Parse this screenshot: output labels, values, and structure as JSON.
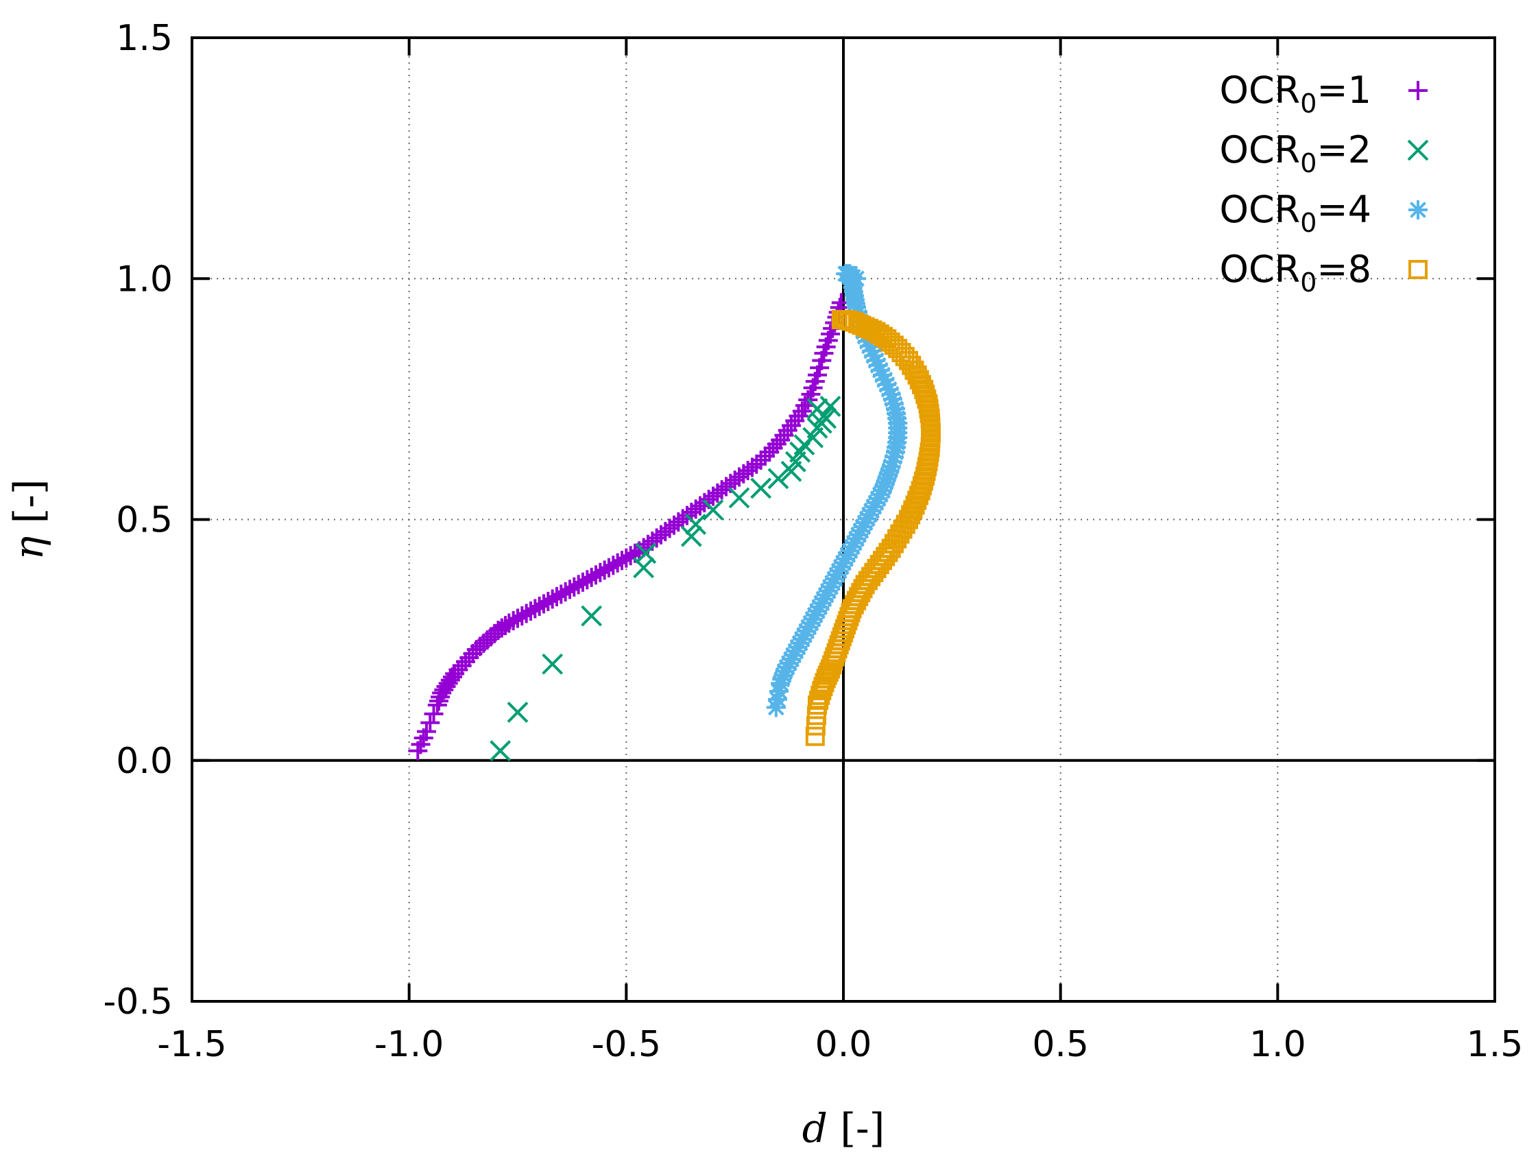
{
  "chart_data": {
    "type": "scatter",
    "xlabel_symbol": "d",
    "xlabel_unit": " [-]",
    "ylabel_symbol": "η",
    "ylabel_unit": " [-]",
    "xlim": [
      -1.5,
      1.5
    ],
    "ylim": [
      -0.5,
      1.5
    ],
    "x_ticks": [
      -1.5,
      -1.0,
      -0.5,
      0.0,
      0.5,
      1.0,
      1.5
    ],
    "y_ticks": [
      -0.5,
      0.0,
      0.5,
      1.0,
      1.5
    ],
    "x_tick_labels": [
      "-1.5",
      "-1.0",
      "-0.5",
      "0.0",
      "0.5",
      "1.0",
      "1.5"
    ],
    "y_tick_labels": [
      "-0.5",
      "0.0",
      "0.5",
      "1.0",
      "1.5"
    ],
    "grid": true,
    "legend_position": "top-right",
    "series": [
      {
        "name": "OCR0=1",
        "label_main": "OCR",
        "label_sub": "0",
        "label_tail": "=1",
        "color": "#9400d3",
        "marker": "plus",
        "points": [
          [
            -0.98,
            0.02
          ],
          [
            -0.96,
            0.06
          ],
          [
            -0.935,
            0.115
          ],
          [
            -0.925,
            0.14
          ],
          [
            -0.91,
            0.16
          ],
          [
            -0.895,
            0.18
          ],
          [
            -0.87,
            0.205
          ],
          [
            -0.845,
            0.23
          ],
          [
            -0.82,
            0.25
          ],
          [
            -0.795,
            0.27
          ],
          [
            -0.77,
            0.285
          ],
          [
            -0.74,
            0.3
          ],
          [
            -0.71,
            0.315
          ],
          [
            -0.68,
            0.33
          ],
          [
            -0.65,
            0.345
          ],
          [
            -0.62,
            0.36
          ],
          [
            -0.59,
            0.375
          ],
          [
            -0.56,
            0.39
          ],
          [
            -0.53,
            0.405
          ],
          [
            -0.5,
            0.42
          ],
          [
            -0.47,
            0.435
          ],
          [
            -0.44,
            0.455
          ],
          [
            -0.41,
            0.475
          ],
          [
            -0.38,
            0.495
          ],
          [
            -0.35,
            0.515
          ],
          [
            -0.32,
            0.535
          ],
          [
            -0.29,
            0.555
          ],
          [
            -0.26,
            0.575
          ],
          [
            -0.23,
            0.595
          ],
          [
            -0.2,
            0.615
          ],
          [
            -0.17,
            0.64
          ],
          [
            -0.145,
            0.665
          ],
          [
            -0.12,
            0.695
          ],
          [
            -0.095,
            0.725
          ],
          [
            -0.075,
            0.76
          ],
          [
            -0.06,
            0.8
          ],
          [
            -0.045,
            0.845
          ],
          [
            -0.03,
            0.885
          ],
          [
            -0.015,
            0.92
          ],
          [
            -0.005,
            0.95
          ]
        ]
      },
      {
        "name": "OCR0=2",
        "label_main": "OCR",
        "label_sub": "0",
        "label_tail": "=2",
        "color": "#009e73",
        "marker": "cross",
        "points": [
          [
            -0.79,
            0.02
          ],
          [
            -0.75,
            0.1
          ],
          [
            -0.67,
            0.2
          ],
          [
            -0.58,
            0.3
          ],
          [
            -0.46,
            0.4
          ],
          [
            -0.455,
            0.43
          ],
          [
            -0.35,
            0.465
          ],
          [
            -0.34,
            0.49
          ],
          [
            -0.3,
            0.52
          ],
          [
            -0.24,
            0.545
          ],
          [
            -0.19,
            0.565
          ],
          [
            -0.15,
            0.585
          ],
          [
            -0.12,
            0.6
          ],
          [
            -0.11,
            0.62
          ],
          [
            -0.1,
            0.64
          ],
          [
            -0.09,
            0.655
          ],
          [
            -0.07,
            0.67
          ],
          [
            -0.06,
            0.69
          ],
          [
            -0.05,
            0.7
          ],
          [
            -0.04,
            0.71
          ],
          [
            -0.06,
            0.73
          ],
          [
            -0.03,
            0.735
          ],
          [
            -0.045,
            0.715
          ]
        ]
      },
      {
        "name": "OCR0=4",
        "label_main": "OCR",
        "label_sub": "0",
        "label_tail": "=4",
        "color": "#56b4e9",
        "marker": "star",
        "points": [
          [
            -0.155,
            0.11
          ],
          [
            -0.145,
            0.16
          ],
          [
            -0.135,
            0.185
          ],
          [
            -0.12,
            0.21
          ],
          [
            -0.105,
            0.235
          ],
          [
            -0.09,
            0.26
          ],
          [
            -0.075,
            0.285
          ],
          [
            -0.06,
            0.31
          ],
          [
            -0.045,
            0.335
          ],
          [
            -0.03,
            0.36
          ],
          [
            -0.015,
            0.385
          ],
          [
            0.0,
            0.41
          ],
          [
            0.015,
            0.435
          ],
          [
            0.03,
            0.46
          ],
          [
            0.045,
            0.485
          ],
          [
            0.06,
            0.51
          ],
          [
            0.075,
            0.535
          ],
          [
            0.09,
            0.56
          ],
          [
            0.1,
            0.585
          ],
          [
            0.11,
            0.61
          ],
          [
            0.12,
            0.64
          ],
          [
            0.125,
            0.67
          ],
          [
            0.125,
            0.7
          ],
          [
            0.12,
            0.73
          ],
          [
            0.11,
            0.76
          ],
          [
            0.095,
            0.79
          ],
          [
            0.08,
            0.82
          ],
          [
            0.065,
            0.85
          ],
          [
            0.05,
            0.88
          ],
          [
            0.04,
            0.91
          ],
          [
            0.03,
            0.94
          ],
          [
            0.025,
            0.965
          ],
          [
            0.02,
            0.99
          ],
          [
            0.015,
            1.01
          ],
          [
            0.005,
            1.01
          ],
          [
            0.03,
            1.0
          ]
        ]
      },
      {
        "name": "OCR0=8",
        "label_main": "OCR",
        "label_sub": "0",
        "label_tail": "=8",
        "color": "#e69f00",
        "marker": "square",
        "points": [
          [
            -0.065,
            0.05
          ],
          [
            -0.06,
            0.115
          ],
          [
            -0.05,
            0.145
          ],
          [
            -0.04,
            0.17
          ],
          [
            -0.03,
            0.19
          ],
          [
            -0.02,
            0.215
          ],
          [
            -0.01,
            0.24
          ],
          [
            0.0,
            0.265
          ],
          [
            0.01,
            0.29
          ],
          [
            0.02,
            0.315
          ],
          [
            0.035,
            0.34
          ],
          [
            0.05,
            0.365
          ],
          [
            0.07,
            0.39
          ],
          [
            0.09,
            0.415
          ],
          [
            0.11,
            0.44
          ],
          [
            0.13,
            0.47
          ],
          [
            0.15,
            0.5
          ],
          [
            0.165,
            0.53
          ],
          [
            0.178,
            0.56
          ],
          [
            0.188,
            0.59
          ],
          [
            0.195,
            0.62
          ],
          [
            0.2,
            0.65
          ],
          [
            0.202,
            0.68
          ],
          [
            0.2,
            0.71
          ],
          [
            0.195,
            0.74
          ],
          [
            0.185,
            0.77
          ],
          [
            0.17,
            0.8
          ],
          [
            0.15,
            0.83
          ],
          [
            0.125,
            0.855
          ],
          [
            0.1,
            0.875
          ],
          [
            0.075,
            0.89
          ],
          [
            0.05,
            0.9
          ],
          [
            0.025,
            0.91
          ],
          [
            0.005,
            0.915
          ],
          [
            -0.005,
            0.915
          ]
        ]
      }
    ]
  }
}
